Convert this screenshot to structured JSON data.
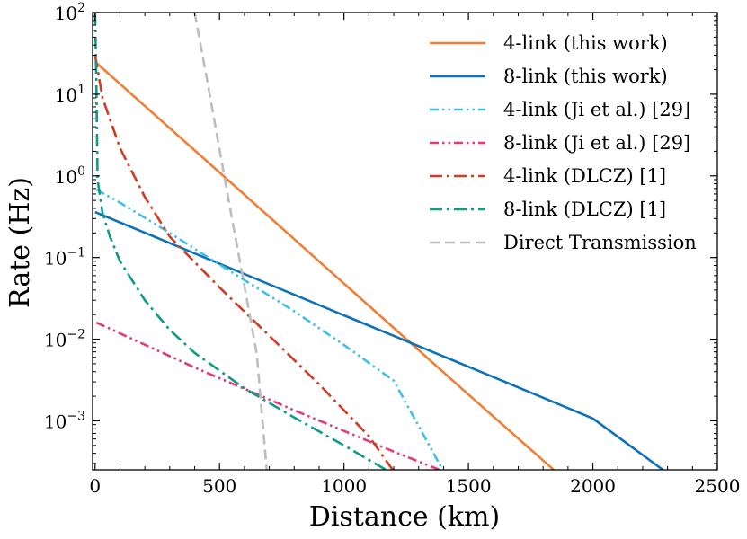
{
  "chart_data": {
    "type": "line",
    "title": "",
    "xlabel": "Distance (km)",
    "ylabel": "Rate (Hz)",
    "xlim": [
      -10,
      2500
    ],
    "ylim_log10": [
      -3.6,
      2
    ],
    "y_scale": "log",
    "grid": false,
    "legend_position": "top-right",
    "x_ticks": [
      {
        "value": 0,
        "label": "0"
      },
      {
        "value": 500,
        "label": "500"
      },
      {
        "value": 1000,
        "label": "1000"
      },
      {
        "value": 1500,
        "label": "1500"
      },
      {
        "value": 2000,
        "label": "2000"
      },
      {
        "value": 2500,
        "label": "2500"
      }
    ],
    "y_ticks": [
      {
        "exp": 2,
        "base": "10",
        "sup": "2"
      },
      {
        "exp": 1,
        "base": "10",
        "sup": "1"
      },
      {
        "exp": 0,
        "base": "10",
        "sup": "0"
      },
      {
        "exp": -1,
        "base": "10",
        "sup": "−1"
      },
      {
        "exp": -2,
        "base": "10",
        "sup": "−2"
      },
      {
        "exp": -3,
        "base": "10",
        "sup": "−3"
      }
    ],
    "series": [
      {
        "name": "4-link (this work)",
        "color": "#f07f35",
        "dash": "solid",
        "x": [
          0,
          500,
          1000,
          1500,
          1850
        ],
        "y": [
          25,
          1.1,
          0.048,
          0.0021,
          0.00024
        ]
      },
      {
        "name": "8-link (this work)",
        "color": "#0d72b8",
        "dash": "solid",
        "x": [
          0,
          500,
          1000,
          1500,
          2000,
          2290
        ],
        "y": [
          0.36,
          0.084,
          0.0196,
          0.0046,
          0.00107,
          0.00024
        ]
      },
      {
        "name": "4-link (Ji et al.) [29]",
        "color": "#3fc0e8",
        "dash": "dashdotdot",
        "x": [
          5,
          100,
          300,
          500,
          800,
          1000,
          1200,
          1400
        ],
        "y": [
          0.68,
          0.47,
          0.2,
          0.082,
          0.022,
          0.0085,
          0.0031,
          0.00024
        ]
      },
      {
        "name": "8-link (Ji et al.) [29]",
        "color": "#e5387a",
        "dash": "dashdotdot",
        "x": [
          5,
          400,
          800,
          1200,
          1400
        ],
        "y": [
          0.016,
          0.0045,
          0.00135,
          0.00042,
          0.00024
        ]
      },
      {
        "name": "4-link (DLCZ) [1]",
        "color": "#d03c23",
        "dash": "dashdot",
        "x": [
          0,
          30,
          100,
          200,
          300,
          500,
          700,
          900,
          1100,
          1200
        ],
        "y": [
          30,
          9,
          2.2,
          0.55,
          0.18,
          0.043,
          0.011,
          0.0028,
          0.00065,
          0.00024
        ]
      },
      {
        "name": "8-link (DLCZ) [1]",
        "color": "#0f9a8a",
        "dash": "dashdot",
        "x": [
          0,
          5,
          10,
          30,
          60,
          100,
          200,
          300,
          400,
          600,
          800,
          1000,
          1180
        ],
        "y": [
          100,
          15,
          0.9,
          0.35,
          0.18,
          0.09,
          0.03,
          0.013,
          0.0068,
          0.0025,
          0.0011,
          0.0005,
          0.00024
        ]
      },
      {
        "name": "Direct Transmission",
        "color": "#bdbdbd",
        "dash": "dashed",
        "x": [
          400,
          450,
          500,
          550,
          600,
          650,
          690
        ],
        "y": [
          100,
          15,
          2.1,
          0.3,
          0.045,
          0.0065,
          0.00024
        ]
      }
    ]
  }
}
